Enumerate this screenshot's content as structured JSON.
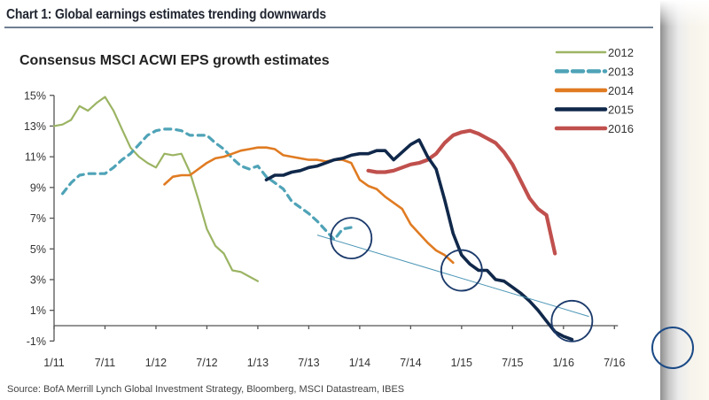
{
  "heading": "Chart 1: Global earnings estimates trending downwards",
  "source": "Source:  BofA Merrill Lynch Global Investment Strategy, Bloomberg, MSCI Datastream, IBES",
  "chart_data": {
    "type": "line",
    "title": "Consensus MSCI ACWI EPS growth estimates",
    "xlabel": "",
    "ylabel": "",
    "x_unit": "months since Jan 2011",
    "x_ticks": [
      {
        "label": "1/11",
        "x": 0
      },
      {
        "label": "7/11",
        "x": 6
      },
      {
        "label": "1/12",
        "x": 12
      },
      {
        "label": "7/12",
        "x": 18
      },
      {
        "label": "1/13",
        "x": 24
      },
      {
        "label": "7/13",
        "x": 30
      },
      {
        "label": "1/14",
        "x": 36
      },
      {
        "label": "7/14",
        "x": 42
      },
      {
        "label": "1/15",
        "x": 48
      },
      {
        "label": "7/15",
        "x": 54
      },
      {
        "label": "1/16",
        "x": 60
      },
      {
        "label": "7/16",
        "x": 66
      }
    ],
    "y_ticks": [
      {
        "label": "-1%",
        "y": -1
      },
      {
        "label": "1%",
        "y": 1
      },
      {
        "label": "3%",
        "y": 3
      },
      {
        "label": "5%",
        "y": 5
      },
      {
        "label": "7%",
        "y": 7
      },
      {
        "label": "9%",
        "y": 9
      },
      {
        "label": "11%",
        "y": 11
      },
      {
        "label": "13%",
        "y": 13
      },
      {
        "label": "15%",
        "y": 15
      }
    ],
    "xlim": [
      0,
      66
    ],
    "ylim": [
      -1,
      15
    ],
    "grid": false,
    "legend": "top-right",
    "series": [
      {
        "name": "2012",
        "color": "#9bb463",
        "style": "solid",
        "points": [
          [
            0,
            13.0
          ],
          [
            1,
            13.1
          ],
          [
            2,
            13.4
          ],
          [
            3,
            14.3
          ],
          [
            4,
            14.0
          ],
          [
            5,
            14.5
          ],
          [
            6,
            14.9
          ],
          [
            7,
            14.0
          ],
          [
            8,
            12.8
          ],
          [
            9,
            11.6
          ],
          [
            10,
            11.0
          ],
          [
            11,
            10.6
          ],
          [
            12,
            10.3
          ],
          [
            13,
            11.2
          ],
          [
            14,
            11.1
          ],
          [
            15,
            11.2
          ],
          [
            16,
            10.0
          ],
          [
            17,
            8.2
          ],
          [
            18,
            6.3
          ],
          [
            19,
            5.2
          ],
          [
            20,
            4.7
          ],
          [
            21,
            3.6
          ],
          [
            22,
            3.5
          ],
          [
            23,
            3.2
          ],
          [
            24,
            2.9
          ]
        ]
      },
      {
        "name": "2013",
        "color": "#4fa3b7",
        "style": "dashed",
        "points": [
          [
            1,
            8.6
          ],
          [
            2,
            9.3
          ],
          [
            3,
            9.8
          ],
          [
            4,
            9.9
          ],
          [
            5,
            9.9
          ],
          [
            6,
            9.9
          ],
          [
            7,
            10.3
          ],
          [
            8,
            10.8
          ],
          [
            9,
            11.2
          ],
          [
            10,
            11.8
          ],
          [
            11,
            12.4
          ],
          [
            12,
            12.7
          ],
          [
            13,
            12.8
          ],
          [
            14,
            12.8
          ],
          [
            15,
            12.7
          ],
          [
            16,
            12.4
          ],
          [
            17,
            12.4
          ],
          [
            18,
            12.4
          ],
          [
            19,
            11.9
          ],
          [
            20,
            11.5
          ],
          [
            21,
            10.9
          ],
          [
            22,
            10.4
          ],
          [
            23,
            10.2
          ],
          [
            24,
            10.4
          ],
          [
            25,
            9.7
          ],
          [
            26,
            9.3
          ],
          [
            27,
            8.9
          ],
          [
            28,
            8.1
          ],
          [
            29,
            7.7
          ],
          [
            30,
            7.3
          ],
          [
            31,
            6.8
          ],
          [
            32,
            6.2
          ],
          [
            33,
            5.6
          ],
          [
            34,
            6.3
          ],
          [
            35,
            6.4
          ]
        ]
      },
      {
        "name": "2014",
        "color": "#e07b22",
        "style": "solid",
        "points": [
          [
            13,
            9.2
          ],
          [
            14,
            9.7
          ],
          [
            15,
            9.8
          ],
          [
            16,
            9.8
          ],
          [
            17,
            10.2
          ],
          [
            18,
            10.6
          ],
          [
            19,
            10.9
          ],
          [
            20,
            11.0
          ],
          [
            21,
            11.2
          ],
          [
            22,
            11.4
          ],
          [
            23,
            11.5
          ],
          [
            24,
            11.6
          ],
          [
            25,
            11.6
          ],
          [
            26,
            11.5
          ],
          [
            27,
            11.1
          ],
          [
            28,
            11.0
          ],
          [
            29,
            10.9
          ],
          [
            30,
            10.8
          ],
          [
            31,
            10.8
          ],
          [
            32,
            10.7
          ],
          [
            33,
            10.8
          ],
          [
            34,
            10.8
          ],
          [
            35,
            10.6
          ],
          [
            36,
            9.5
          ],
          [
            37,
            9.1
          ],
          [
            38,
            8.9
          ],
          [
            39,
            8.4
          ],
          [
            40,
            8.0
          ],
          [
            41,
            7.6
          ],
          [
            42,
            6.6
          ],
          [
            43,
            6.0
          ],
          [
            44,
            5.4
          ],
          [
            45,
            4.9
          ],
          [
            46,
            4.6
          ],
          [
            47,
            4.1
          ]
        ]
      },
      {
        "name": "2015",
        "color": "#10284a",
        "style": "solid",
        "points": [
          [
            25,
            9.5
          ],
          [
            26,
            9.8
          ],
          [
            27,
            9.8
          ],
          [
            28,
            10.0
          ],
          [
            29,
            10.1
          ],
          [
            30,
            10.3
          ],
          [
            31,
            10.4
          ],
          [
            32,
            10.6
          ],
          [
            33,
            10.8
          ],
          [
            34,
            10.9
          ],
          [
            35,
            11.1
          ],
          [
            36,
            11.2
          ],
          [
            37,
            11.2
          ],
          [
            38,
            11.4
          ],
          [
            39,
            11.4
          ],
          [
            40,
            10.8
          ],
          [
            41,
            11.3
          ],
          [
            42,
            11.8
          ],
          [
            43,
            12.1
          ],
          [
            44,
            11.0
          ],
          [
            45,
            10.2
          ],
          [
            46,
            8.2
          ],
          [
            47,
            6.0
          ],
          [
            48,
            4.6
          ],
          [
            49,
            4.0
          ],
          [
            50,
            3.6
          ],
          [
            51,
            3.6
          ],
          [
            52,
            3.0
          ],
          [
            53,
            2.9
          ],
          [
            54,
            2.5
          ],
          [
            55,
            2.1
          ],
          [
            56,
            1.6
          ],
          [
            57,
            1.0
          ],
          [
            58,
            0.3
          ],
          [
            59,
            -0.4
          ],
          [
            60,
            -0.7
          ],
          [
            61,
            -0.9
          ]
        ]
      },
      {
        "name": "2016",
        "color": "#c0504d",
        "style": "solid",
        "points": [
          [
            37,
            10.1
          ],
          [
            38,
            10.0
          ],
          [
            39,
            10.0
          ],
          [
            40,
            10.1
          ],
          [
            41,
            10.3
          ],
          [
            42,
            10.5
          ],
          [
            43,
            10.6
          ],
          [
            44,
            10.8
          ],
          [
            45,
            11.2
          ],
          [
            46,
            11.9
          ],
          [
            47,
            12.4
          ],
          [
            48,
            12.6
          ],
          [
            49,
            12.7
          ],
          [
            50,
            12.5
          ],
          [
            51,
            12.2
          ],
          [
            52,
            11.9
          ],
          [
            53,
            11.3
          ],
          [
            54,
            10.5
          ],
          [
            55,
            9.4
          ],
          [
            56,
            8.3
          ],
          [
            57,
            7.6
          ],
          [
            58,
            7.2
          ],
          [
            59,
            4.7
          ]
        ]
      }
    ],
    "annotations": {
      "trend_line": {
        "from": [
          31,
          5.9
        ],
        "to": [
          63,
          0.6
        ],
        "color": "#4a95b5"
      },
      "circles": [
        {
          "center": [
            35,
            5.7
          ],
          "color": "#1b3a6b"
        },
        {
          "center": [
            48,
            3.6
          ],
          "color": "#1b3a6b"
        },
        {
          "center": [
            61,
            0.3
          ],
          "color": "#1b3a6b"
        }
      ]
    }
  }
}
